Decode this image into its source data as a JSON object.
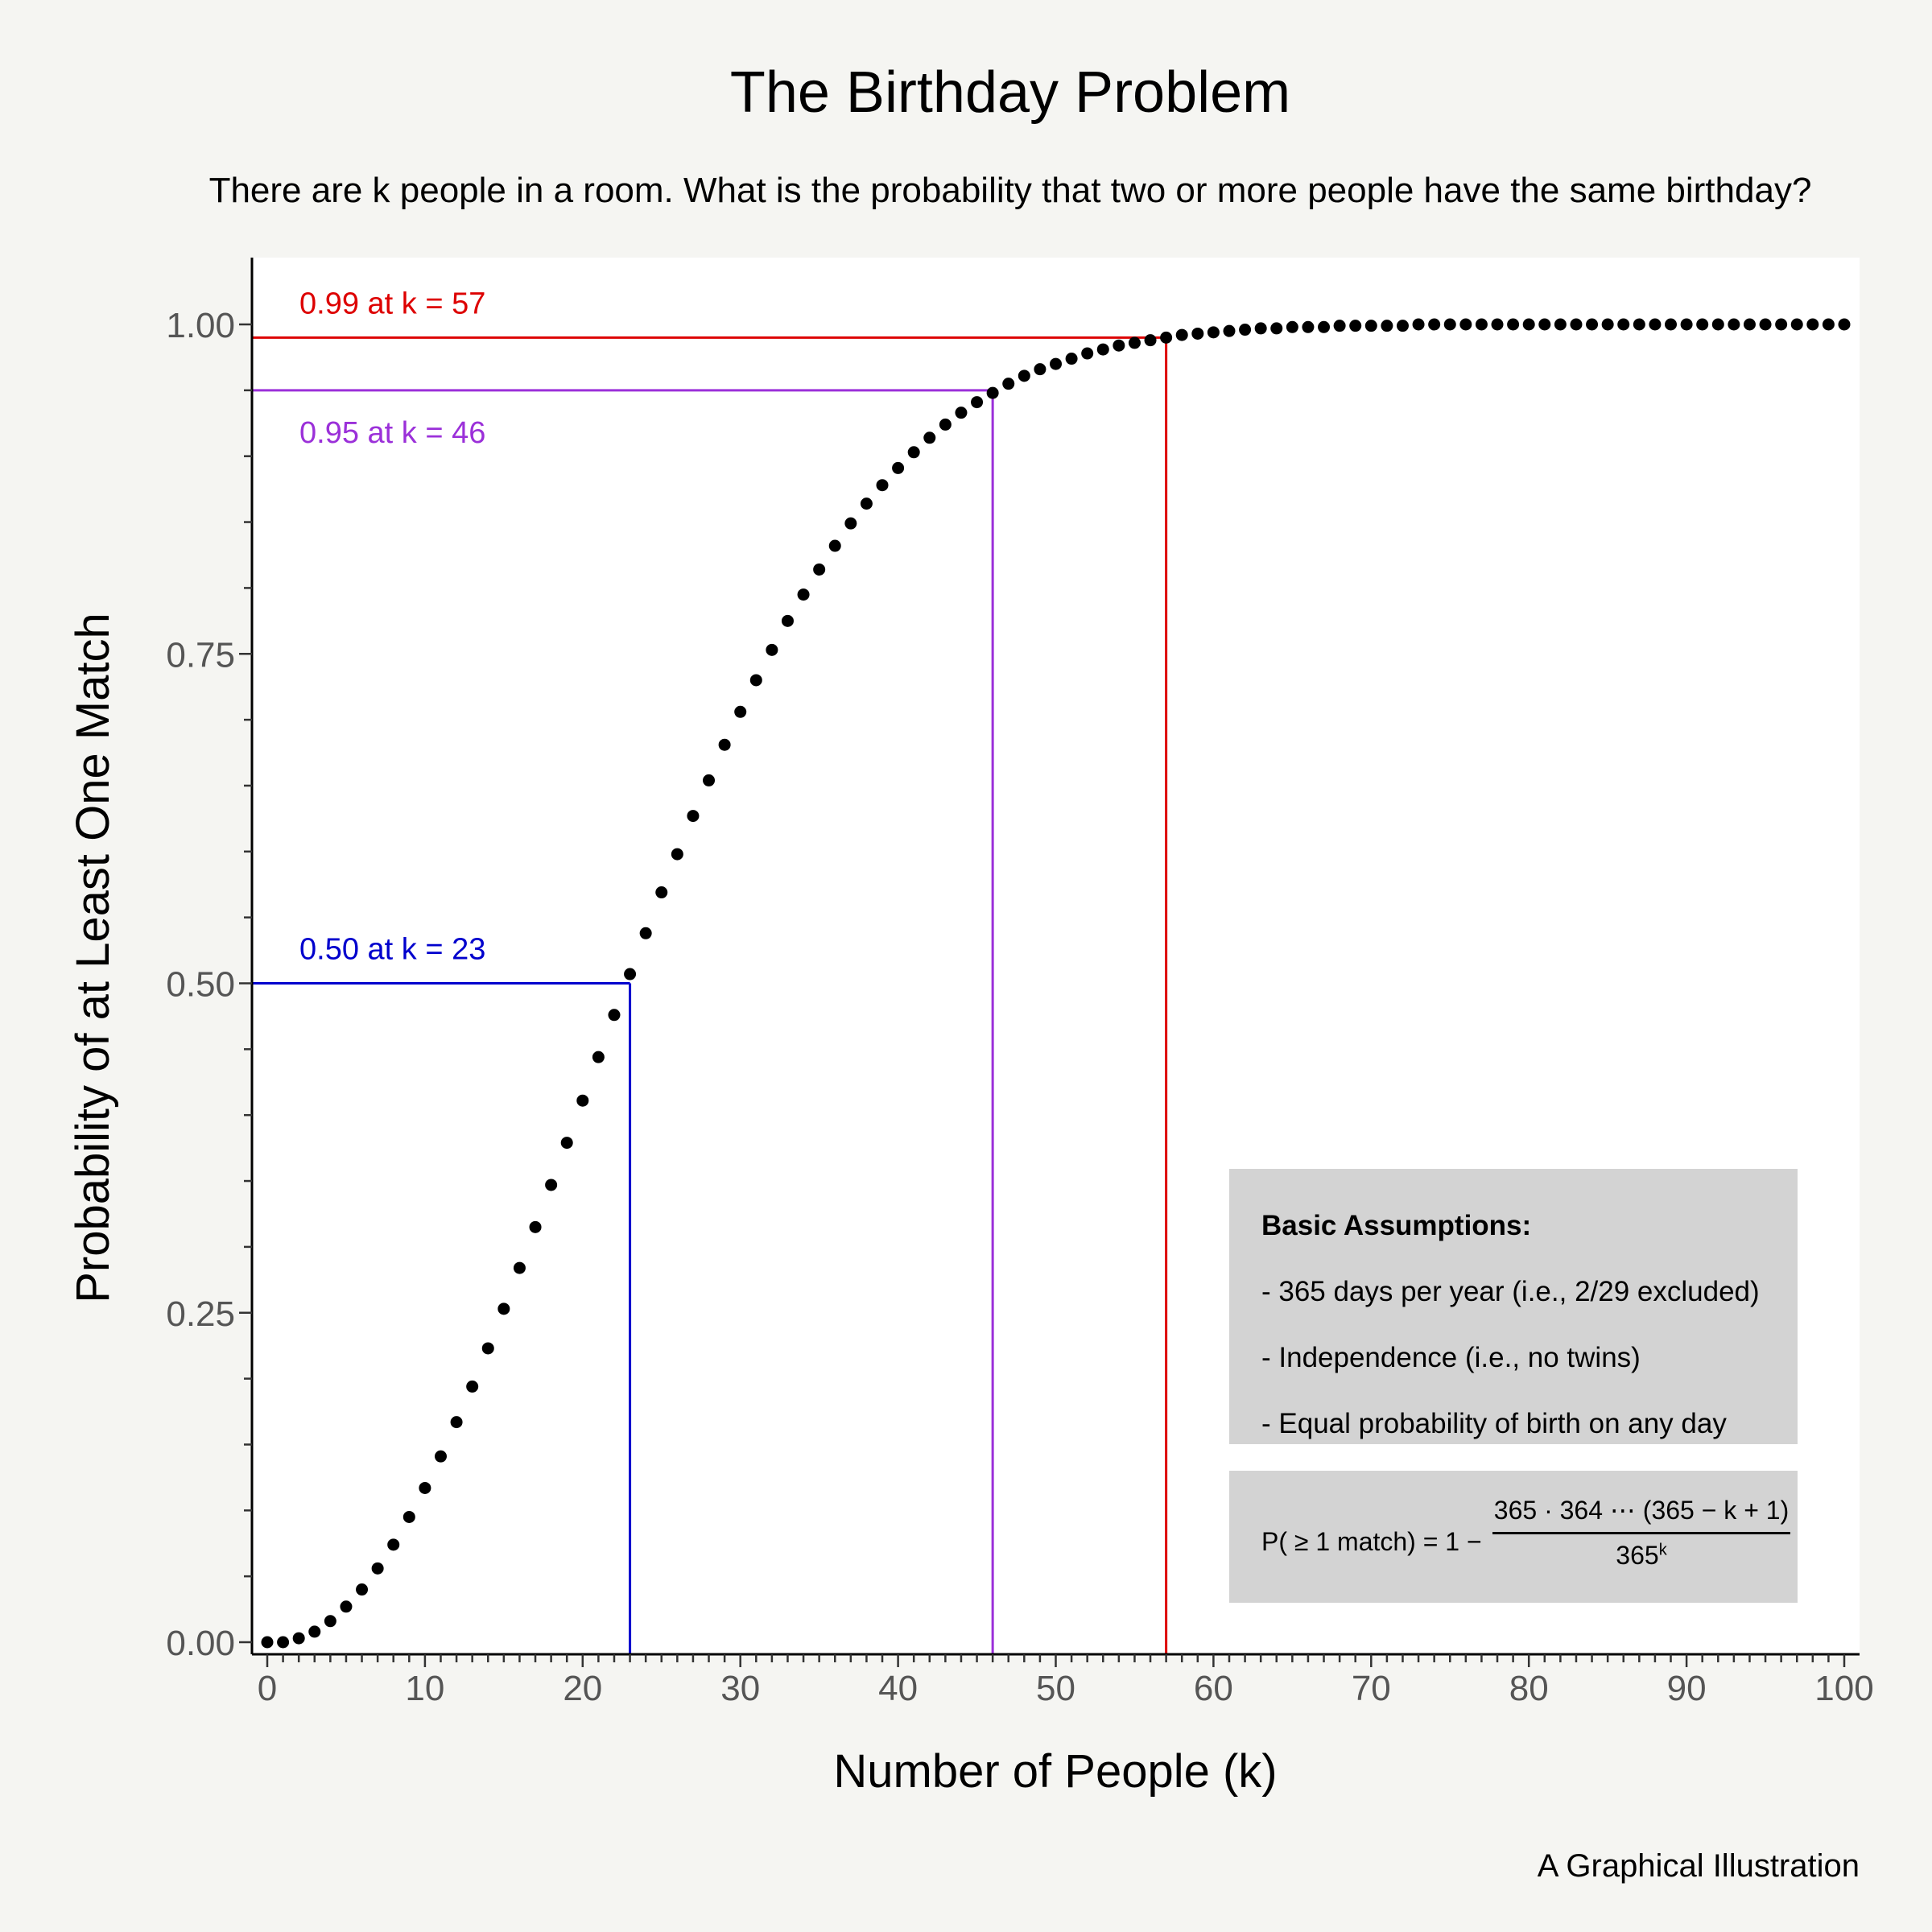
{
  "header": {
    "title": "The Birthday Problem",
    "subtitle": "There are k people in a room. What is the probability that two or more people have the same birthday?"
  },
  "caption": "A Graphical Illustration",
  "assumptions": {
    "title": "Basic Assumptions:",
    "items": [
      "- 365 days per year (i.e., 2/29 excluded)",
      "- Independence (i.e., no twins)",
      "- Equal probability of birth on any day"
    ]
  },
  "formula": {
    "left": "P( ≥ 1 match) = 1 −",
    "numerator": "365 · 364  ⋯  (365 − k + 1)",
    "denominator_base": "365",
    "denominator_exp": "k"
  },
  "chart_data": {
    "type": "scatter",
    "title": "The Birthday Problem",
    "subtitle": "There are k people in a room. What is the probability that two or more people have the same birthday?",
    "xlabel": "Number of People (k)",
    "ylabel": "Probability of at Least One Match",
    "xlim": [
      0,
      100
    ],
    "ylim": [
      0,
      1
    ],
    "x_ticks": [
      "0",
      "10",
      "20",
      "30",
      "40",
      "50",
      "60",
      "70",
      "80",
      "90",
      "100"
    ],
    "y_ticks": [
      "0.00",
      "0.25",
      "0.50",
      "0.75",
      "1.00"
    ],
    "grid": false,
    "point_color": "#000000",
    "x": [
      0,
      1,
      2,
      3,
      4,
      5,
      6,
      7,
      8,
      9,
      10,
      11,
      12,
      13,
      14,
      15,
      16,
      17,
      18,
      19,
      20,
      21,
      22,
      23,
      24,
      25,
      26,
      27,
      28,
      29,
      30,
      31,
      32,
      33,
      34,
      35,
      36,
      37,
      38,
      39,
      40,
      41,
      42,
      43,
      44,
      45,
      46,
      47,
      48,
      49,
      50,
      51,
      52,
      53,
      54,
      55,
      56,
      57,
      58,
      59,
      60,
      61,
      62,
      63,
      64,
      65,
      66,
      67,
      68,
      69,
      70,
      71,
      72,
      73,
      74,
      75,
      76,
      77,
      78,
      79,
      80,
      81,
      82,
      83,
      84,
      85,
      86,
      87,
      88,
      89,
      90,
      91,
      92,
      93,
      94,
      95,
      96,
      97,
      98,
      99,
      100
    ],
    "y": [
      0,
      0,
      0.003,
      0.008,
      0.016,
      0.027,
      0.04,
      0.056,
      0.074,
      0.095,
      0.117,
      0.141,
      0.167,
      0.194,
      0.223,
      0.253,
      0.284,
      0.315,
      0.347,
      0.379,
      0.411,
      0.444,
      0.476,
      0.507,
      0.538,
      0.569,
      0.598,
      0.627,
      0.654,
      0.681,
      0.706,
      0.73,
      0.753,
      0.775,
      0.795,
      0.814,
      0.832,
      0.849,
      0.864,
      0.878,
      0.891,
      0.903,
      0.914,
      0.924,
      0.933,
      0.941,
      0.948,
      0.955,
      0.961,
      0.966,
      0.97,
      0.974,
      0.978,
      0.981,
      0.984,
      0.986,
      0.988,
      0.99,
      0.992,
      0.993,
      0.994,
      0.995,
      0.996,
      0.997,
      0.997,
      0.998,
      0.998,
      0.998,
      0.999,
      0.999,
      0.999,
      0.999,
      0.999,
      1.0,
      1.0,
      1.0,
      1.0,
      1.0,
      1.0,
      1.0,
      1.0,
      1.0,
      1.0,
      1.0,
      1.0,
      1.0,
      1.0,
      1.0,
      1.0,
      1.0,
      1.0,
      1.0,
      1.0,
      1.0,
      1.0,
      1.0,
      1.0,
      1.0,
      1.0,
      1.0,
      1.0
    ],
    "reference_lines": [
      {
        "k": 23,
        "p": 0.5,
        "label": "0.50 at k = 23",
        "color": "#0000cd",
        "label_position": "above"
      },
      {
        "k": 46,
        "p": 0.95,
        "label": "0.95 at k = 46",
        "color": "#9b30d9",
        "label_position": "below"
      },
      {
        "k": 57,
        "p": 0.99,
        "label": "0.99 at k = 57",
        "color": "#dd0000",
        "label_position": "above"
      }
    ]
  }
}
